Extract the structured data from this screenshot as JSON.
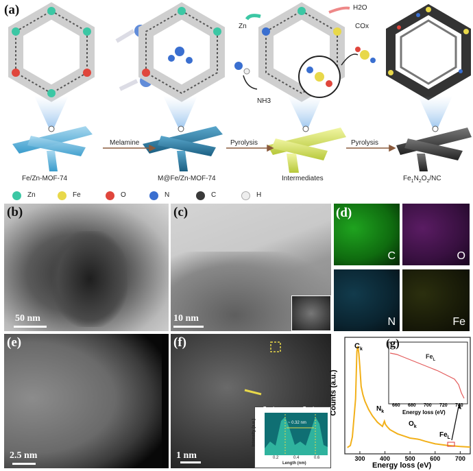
{
  "panel_a": {
    "label": "(a)",
    "stages": [
      "Fe/Zn-MOF-74",
      "M@Fe/Zn-MOF-74",
      "Intermediates",
      "Fe1N2O2/NC"
    ],
    "steps": [
      "Melamine",
      "Pyrolysis",
      "Pyrolysis"
    ],
    "species": {
      "zn": "Zn",
      "h2o": "H2O",
      "cox": "COx",
      "nh3": "NH3"
    },
    "legend": [
      {
        "symbol": "Zn",
        "color": "#3cc7a4"
      },
      {
        "symbol": "Fe",
        "color": "#e8d84a"
      },
      {
        "symbol": "O",
        "color": "#e0463c"
      },
      {
        "symbol": "N",
        "color": "#3a6fd0"
      },
      {
        "symbol": "C",
        "color": "#3a3a3a"
      },
      {
        "symbol": "H",
        "color": "#eeeeee"
      }
    ]
  },
  "panel_b": {
    "label": "(b)",
    "scale": "50 nm"
  },
  "panel_c": {
    "label": "(c)",
    "scale": "10 nm"
  },
  "panel_d": {
    "label": "(d)",
    "maps": [
      "C",
      "O",
      "N",
      "Fe"
    ]
  },
  "panel_e": {
    "label": "(e)",
    "scale": "2.5 nm"
  },
  "panel_f": {
    "label": "(f)",
    "scale": "1 nm",
    "inset": {
      "label_left": "Fe atom",
      "label_right": "Fe atom",
      "distance": "~ 0.32 nm",
      "xlabel": "Length (nm)",
      "ylabel": "Intensity (a.u.)",
      "xticks": [
        "0.2",
        "0.4",
        "0.6"
      ]
    }
  },
  "panel_g": {
    "label": "(g)",
    "peaks": {
      "c": "Ck",
      "n": "Nk",
      "o": "Ok",
      "fe": "FeL"
    },
    "inset_peak": "FeL",
    "inset_xlabel": "Energy loss (eV)",
    "inset_xticks": [
      "660",
      "680",
      "700",
      "720",
      "740"
    ]
  },
  "chart_data": {
    "type": "line",
    "xlabel": "Energy loss (eV)",
    "ylabel": "Counts (a.u.)",
    "xlim": [
      240,
      740
    ],
    "xticks": [
      300,
      400,
      500,
      600,
      700
    ],
    "series": [
      {
        "x": [
          250,
          262,
          270,
          278,
          283,
          288,
          292,
          296,
          300,
          305,
          312,
          320,
          335,
          350,
          370,
          390,
          398,
          402,
          408,
          420,
          450,
          500,
          530,
          540,
          560,
          600,
          650,
          700,
          740
        ],
        "values": [
          0.04,
          0.06,
          0.14,
          0.36,
          0.5,
          0.95,
          1.0,
          0.93,
          0.8,
          0.62,
          0.54,
          0.48,
          0.4,
          0.34,
          0.28,
          0.24,
          0.29,
          0.26,
          0.24,
          0.21,
          0.17,
          0.13,
          0.12,
          0.115,
          0.1,
          0.075,
          0.06,
          0.05,
          0.045
        ]
      }
    ]
  }
}
